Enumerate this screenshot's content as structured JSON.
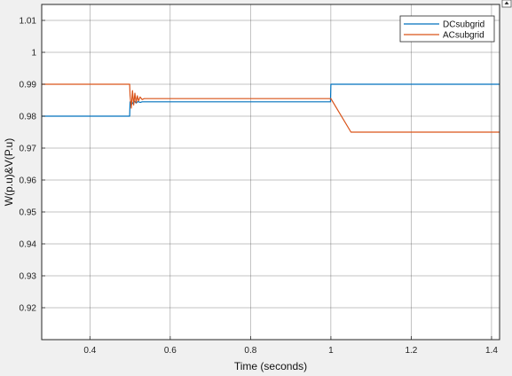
{
  "chart_data": {
    "type": "line",
    "xlabel": "Time (seconds)",
    "ylabel": "W(p.u)&V(P.u)",
    "xlim": [
      0.28,
      1.42
    ],
    "ylim": [
      0.91,
      1.015
    ],
    "xticks": [
      0.4,
      0.6,
      0.8,
      1,
      1.2,
      1.4
    ],
    "xtick_labels": [
      "0.4",
      "0.6",
      "0.8",
      "1",
      "1.2",
      "1.4"
    ],
    "yticks": [
      0.92,
      0.93,
      0.94,
      0.95,
      0.96,
      0.97,
      0.98,
      0.99,
      1.0,
      1.01
    ],
    "ytick_labels": [
      "0.92",
      "0.93",
      "0.94",
      "0.95",
      "0.96",
      "0.97",
      "0.98",
      "0.99",
      "1",
      "1.01"
    ],
    "grid": true,
    "legend_position": "top-right",
    "series": [
      {
        "name": "DCsubgrid",
        "color": "#0072bd",
        "x": [
          0.28,
          0.499,
          0.5,
          0.505,
          0.51,
          0.515,
          0.52,
          0.525,
          0.53,
          0.999,
          1.0,
          1.42
        ],
        "y": [
          0.98,
          0.98,
          0.9845,
          0.9838,
          0.9848,
          0.9841,
          0.9846,
          0.9843,
          0.9845,
          0.9845,
          0.99,
          0.99
        ]
      },
      {
        "name": "ACsubgrid",
        "color": "#d95319",
        "x": [
          0.28,
          0.499,
          0.5,
          0.503,
          0.506,
          0.509,
          0.512,
          0.515,
          0.518,
          0.521,
          0.525,
          0.53,
          0.535,
          1.0,
          1.05,
          1.42
        ],
        "y": [
          0.99,
          0.99,
          0.9865,
          0.9825,
          0.988,
          0.9835,
          0.9872,
          0.9842,
          0.9864,
          0.9848,
          0.986,
          0.9852,
          0.9855,
          0.9855,
          0.975,
          0.975
        ]
      }
    ]
  }
}
